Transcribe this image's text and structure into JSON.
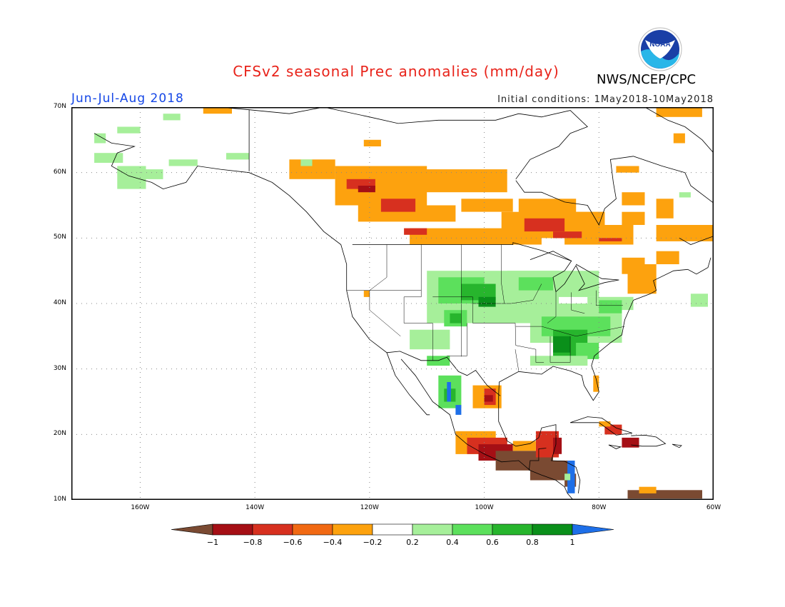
{
  "header": {
    "title": "CFSv2 seasonal Prec anomalies (mm/day)",
    "season": "Jun-Jul-Aug 2018",
    "initial_conditions": "Initial conditions: 1May2018-10May2018",
    "org": "NWS/NCEP/CPC",
    "logo_text": "NOAA"
  },
  "map": {
    "lon_range": [
      -172,
      -60
    ],
    "lat_range": [
      10,
      70
    ],
    "lat_labels": [
      "70N",
      "60N",
      "50N",
      "40N",
      "30N",
      "20N",
      "10N"
    ],
    "lon_labels": [
      "160W",
      "140W",
      "120W",
      "100W",
      "80W",
      "60W"
    ]
  },
  "colorbar": {
    "labels": [
      "-1",
      "-0.8",
      "-0.6",
      "-0.4",
      "-0.2",
      "0.2",
      "0.4",
      "0.6",
      "0.8",
      "1"
    ],
    "colors": [
      "#7a4a32",
      "#a50f15",
      "#d7301f",
      "#f16913",
      "#fda20e",
      "#ffffff",
      "#a6ef9a",
      "#5ce05c",
      "#27b52d",
      "#0a8f1a",
      "#1e6fe8"
    ]
  }
}
